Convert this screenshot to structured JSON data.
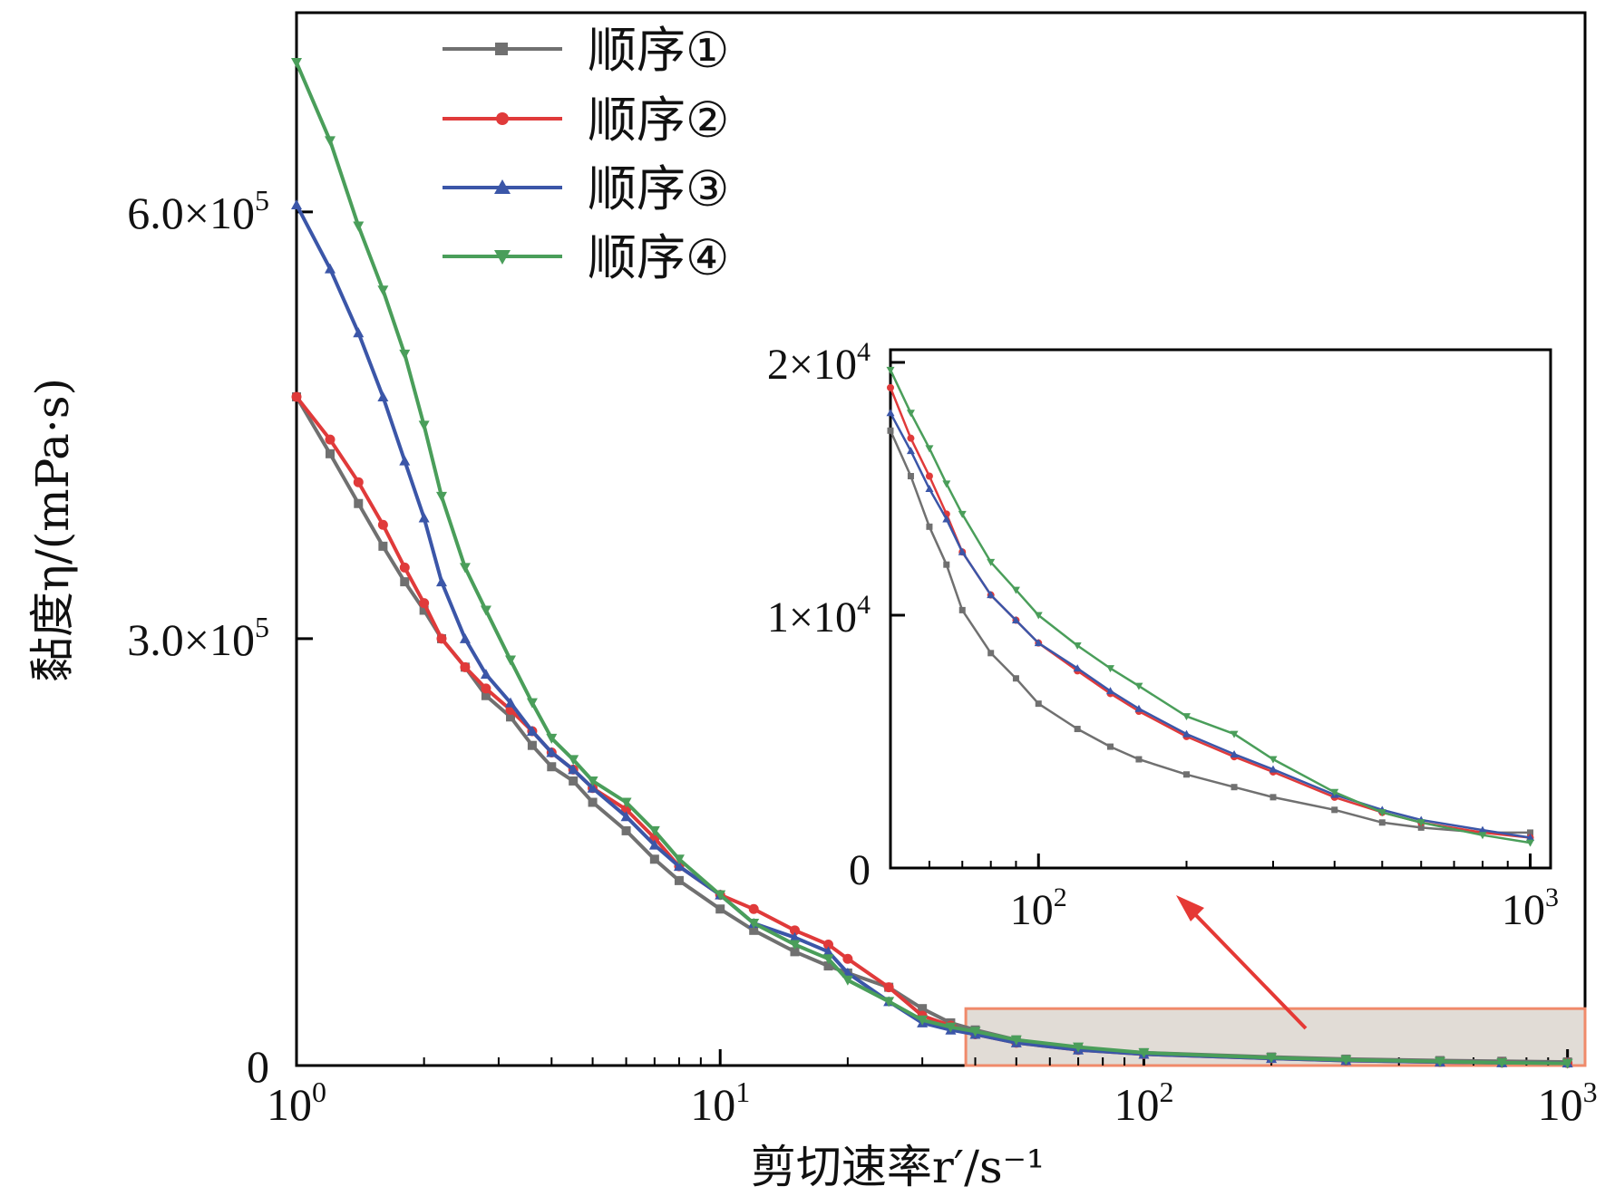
{
  "chart_data": {
    "type": "line",
    "title": "",
    "xlabel": "剪切速率r′/s⁻¹",
    "ylabel": "黏度η/(mPa·s)",
    "xscale": "log",
    "xlim": [
      1,
      1100
    ],
    "ylim": [
      0,
      740000
    ],
    "xticks": [
      1,
      10,
      100,
      1000
    ],
    "xtick_labels": [
      {
        "base": "10",
        "exp": "0"
      },
      {
        "base": "10",
        "exp": "1"
      },
      {
        "base": "10",
        "exp": "2"
      },
      {
        "base": "10",
        "exp": "3"
      }
    ],
    "yticks": [
      0,
      300000,
      600000
    ],
    "ytick_labels": [
      {
        "base": "0",
        "exp": ""
      },
      {
        "base": "3.0×10",
        "exp": "5"
      },
      {
        "base": "6.0×10",
        "exp": "5"
      }
    ],
    "legend_position": "top-left",
    "series": [
      {
        "name": "顺序①",
        "color": "#707070",
        "marker": "square",
        "x": [
          1,
          1.2,
          1.4,
          1.6,
          1.8,
          2,
          2.2,
          2.5,
          2.8,
          3.2,
          3.6,
          4,
          4.5,
          5,
          6,
          7,
          8,
          10,
          12,
          15,
          18,
          20,
          25,
          30,
          35,
          40,
          50,
          70,
          100,
          200,
          300,
          500,
          700,
          1000
        ],
        "y": [
          470000,
          430000,
          395000,
          365000,
          340000,
          320000,
          300000,
          280000,
          260000,
          245000,
          225000,
          210000,
          200000,
          185000,
          165000,
          145000,
          130000,
          110000,
          95000,
          80000,
          70000,
          65000,
          55000,
          40000,
          30000,
          25000,
          18000,
          12000,
          9000,
          6000,
          4500,
          3500,
          3000,
          2500
        ]
      },
      {
        "name": "顺序②",
        "color": "#e03a3a",
        "marker": "circle",
        "x": [
          1,
          1.2,
          1.4,
          1.6,
          1.8,
          2,
          2.2,
          2.5,
          2.8,
          3.2,
          3.6,
          4,
          4.5,
          5,
          6,
          7,
          8,
          10,
          12,
          15,
          18,
          20,
          25,
          30,
          35,
          40,
          50,
          70,
          100,
          200,
          300,
          500,
          700,
          1000
        ],
        "y": [
          470000,
          440000,
          410000,
          380000,
          350000,
          325000,
          300000,
          280000,
          265000,
          250000,
          235000,
          220000,
          208000,
          195000,
          180000,
          160000,
          140000,
          120000,
          110000,
          95000,
          85000,
          75000,
          55000,
          35000,
          28000,
          22000,
          16000,
          11000,
          8000,
          5000,
          3500,
          2500,
          2000,
          1800
        ]
      },
      {
        "name": "顺序③",
        "color": "#3b56a8",
        "marker": "triangle-up",
        "x": [
          1,
          1.2,
          1.4,
          1.6,
          1.8,
          2,
          2.2,
          2.5,
          2.8,
          3.2,
          3.6,
          4,
          4.5,
          5,
          6,
          7,
          8,
          10,
          12,
          15,
          18,
          20,
          25,
          30,
          35,
          40,
          50,
          70,
          100,
          200,
          300,
          500,
          700,
          1000
        ],
        "y": [
          605000,
          560000,
          515000,
          470000,
          425000,
          385000,
          340000,
          300000,
          275000,
          255000,
          235000,
          220000,
          208000,
          195000,
          175000,
          155000,
          140000,
          120000,
          100000,
          90000,
          80000,
          65000,
          45000,
          30000,
          25000,
          22000,
          16000,
          11000,
          8000,
          5000,
          3500,
          2500,
          2000,
          1800
        ]
      },
      {
        "name": "顺序④",
        "color": "#4a9e5a",
        "marker": "triangle-down",
        "x": [
          1,
          1.2,
          1.4,
          1.6,
          1.8,
          2,
          2.2,
          2.5,
          2.8,
          3.2,
          3.6,
          4,
          4.5,
          5,
          6,
          7,
          8,
          10,
          12,
          15,
          18,
          20,
          25,
          30,
          35,
          40,
          50,
          70,
          100,
          200,
          300,
          500,
          700,
          1000
        ],
        "y": [
          705000,
          650000,
          590000,
          545000,
          500000,
          450000,
          400000,
          350000,
          320000,
          285000,
          255000,
          230000,
          215000,
          200000,
          185000,
          165000,
          145000,
          120000,
          100000,
          85000,
          75000,
          60000,
          45000,
          32000,
          27000,
          24000,
          18000,
          13000,
          9000,
          5500,
          4000,
          2800,
          2000,
          1500
        ]
      }
    ],
    "highlight_region": {
      "x": [
        38,
        1100
      ],
      "y": [
        0,
        40000
      ]
    },
    "inset": {
      "xscale": "log",
      "xlim": [
        50,
        1100
      ],
      "ylim": [
        0,
        20500
      ],
      "xticks": [
        100,
        1000
      ],
      "xtick_labels": [
        {
          "base": "10",
          "exp": "2"
        },
        {
          "base": "10",
          "exp": "3"
        }
      ],
      "yticks": [
        0,
        10000,
        20000
      ],
      "ytick_labels": [
        {
          "base": "0",
          "exp": ""
        },
        {
          "base": "1×10",
          "exp": "4"
        },
        {
          "base": "2×10",
          "exp": "4"
        }
      ],
      "series": [
        {
          "name": "顺序①",
          "color": "#707070",
          "marker": "square",
          "x": [
            50,
            55,
            60,
            65,
            70,
            80,
            90,
            100,
            120,
            140,
            160,
            200,
            250,
            300,
            400,
            500,
            600,
            800,
            1000
          ],
          "y": [
            17300,
            15500,
            13500,
            12000,
            10200,
            8500,
            7500,
            6500,
            5500,
            4800,
            4300,
            3700,
            3200,
            2800,
            2300,
            1800,
            1600,
            1400,
            1400
          ]
        },
        {
          "name": "顺序②",
          "color": "#e03a3a",
          "marker": "circle",
          "x": [
            50,
            55,
            60,
            65,
            70,
            80,
            90,
            100,
            120,
            140,
            160,
            200,
            250,
            300,
            400,
            500,
            600,
            800,
            1000
          ],
          "y": [
            19000,
            17000,
            15500,
            14000,
            12500,
            10800,
            9800,
            8900,
            7800,
            6900,
            6200,
            5200,
            4400,
            3800,
            2800,
            2200,
            1800,
            1400,
            1200
          ]
        },
        {
          "name": "顺序③",
          "color": "#3b56a8",
          "marker": "triangle-up",
          "x": [
            50,
            55,
            60,
            65,
            70,
            80,
            90,
            100,
            120,
            140,
            160,
            200,
            250,
            300,
            400,
            500,
            600,
            800,
            1000
          ],
          "y": [
            18000,
            16500,
            15000,
            13800,
            12500,
            10800,
            9800,
            8900,
            7900,
            7000,
            6300,
            5300,
            4500,
            3900,
            2900,
            2300,
            1900,
            1500,
            1200
          ]
        },
        {
          "name": "顺序④",
          "color": "#4a9e5a",
          "marker": "triangle-down",
          "x": [
            50,
            55,
            60,
            65,
            70,
            80,
            90,
            100,
            120,
            140,
            160,
            200,
            250,
            300,
            400,
            500,
            600,
            800,
            1000
          ],
          "y": [
            19700,
            18000,
            16600,
            15200,
            14000,
            12100,
            11000,
            10000,
            8800,
            7900,
            7200,
            6000,
            5300,
            4300,
            3000,
            2200,
            1800,
            1300,
            1000
          ]
        }
      ]
    }
  }
}
